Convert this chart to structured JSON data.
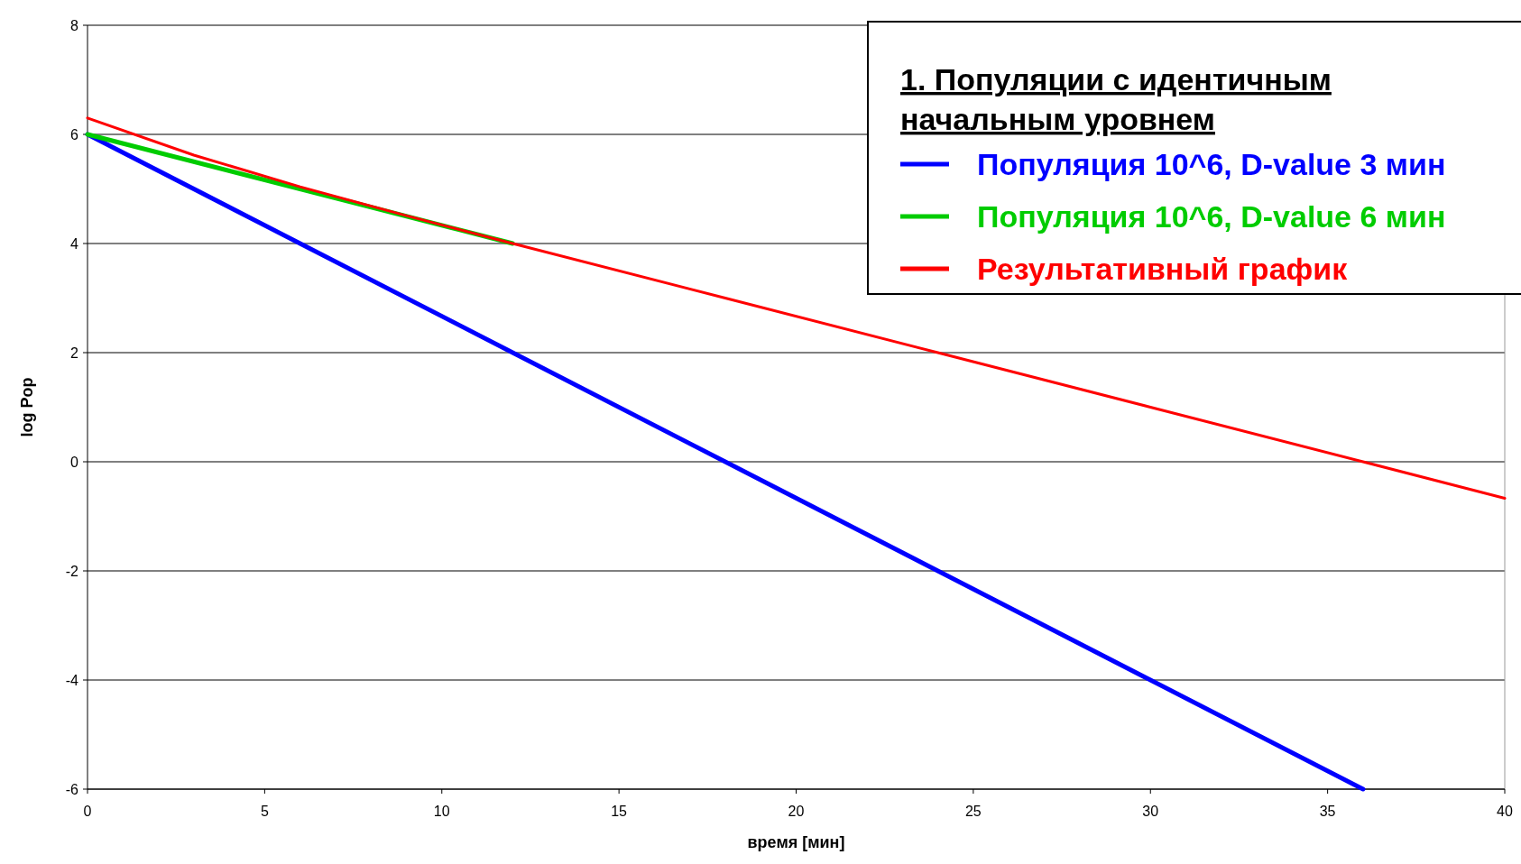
{
  "chart_data": {
    "type": "line",
    "xlabel": "время [мин]",
    "ylabel": "log Pop",
    "legend_title": "1. Популяции с идентичным начальным уровнем",
    "xlim": [
      0,
      40
    ],
    "ylim": [
      -6,
      8
    ],
    "xticks": [
      0,
      5,
      10,
      15,
      20,
      25,
      30,
      35,
      40
    ],
    "yticks": [
      -6,
      -4,
      -2,
      0,
      2,
      4,
      6,
      8
    ],
    "grid": "y",
    "legend": "top right",
    "marker": "none",
    "line_style": "solid",
    "series": [
      {
        "name": "Популяция 10^6, D-value 3 мин",
        "color": "#0000ff",
        "x": [
          0,
          6,
          12,
          18,
          24,
          30,
          36
        ],
        "values": [
          6,
          4,
          2,
          0,
          -2,
          -4,
          -6
        ]
      },
      {
        "name": "Популяция 10^6, D-value 6 мин",
        "color": "#00cc00",
        "x": [
          0,
          6,
          12
        ],
        "values": [
          6,
          5,
          4
        ]
      },
      {
        "name": "Результативный график",
        "color": "#ff0000",
        "x": [
          0,
          3,
          6,
          9,
          12,
          18,
          24,
          30,
          36,
          40
        ],
        "values": [
          6.3,
          5.62,
          5.04,
          4.51,
          4.0,
          3.0,
          2.0,
          1.0,
          0,
          -0.67
        ]
      }
    ]
  }
}
